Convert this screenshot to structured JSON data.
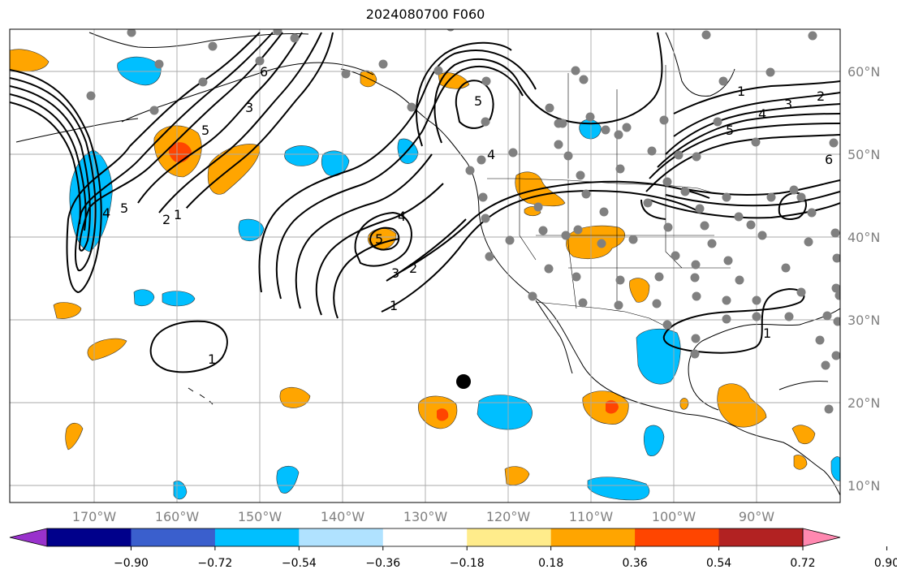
{
  "title": "2024080700 F060",
  "longitude_labels": [
    "170°W",
    "160°W",
    "150°W",
    "140°W",
    "130°W",
    "120°W",
    "110°W",
    "100°W",
    "90°W"
  ],
  "latitude_labels": [
    "10°N",
    "20°N",
    "30°N",
    "40°N",
    "50°N",
    "60°N"
  ],
  "contour_labels": {
    "west_1": "1",
    "west_2": "2",
    "west_3": "3",
    "west_4": "4",
    "west_5": "5",
    "west_6": "6",
    "central_1": "1",
    "central_2": "2",
    "central_3": "3",
    "central_4": "4",
    "central_5": "5",
    "north_5": "5",
    "coast_4": "4",
    "east_1": "1",
    "east_2": "2",
    "east_3": "3",
    "east_4": "4",
    "east_5": "5",
    "east_6": "6",
    "hawaii_1": "1",
    "gulf_1": "1"
  },
  "colorbar": {
    "ticks": [
      "−0.90",
      "−0.72",
      "−0.54",
      "−0.36",
      "−0.18",
      "0.18",
      "0.36",
      "0.54",
      "0.72",
      "0.90"
    ],
    "colors": [
      "#9932cc",
      "#00008b",
      "#3a5fcd",
      "#00bfff",
      "#b0e2ff",
      "#ffffff",
      "#ffec8b",
      "#ffa500",
      "#ff4500",
      "#b22222",
      "#ff88b0"
    ]
  },
  "colors": {
    "grid": "#aaaaaa",
    "contour": "#000000",
    "station": "#808080"
  }
}
